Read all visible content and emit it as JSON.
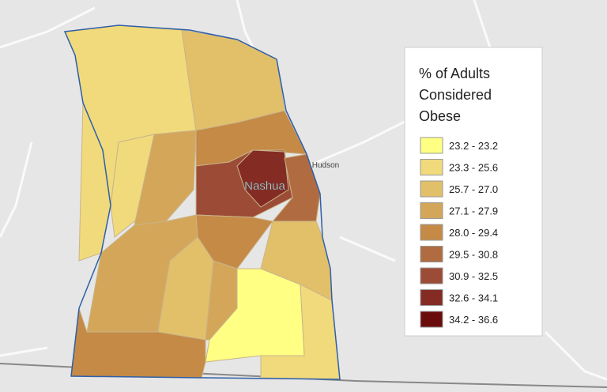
{
  "map": {
    "place_labels": [
      "Nashua",
      "Hudson"
    ]
  },
  "legend": {
    "title_lines": [
      "% of Adults",
      "Considered",
      "Obese"
    ],
    "items": [
      {
        "label": "23.2 - 23.2",
        "color": "#ffff84"
      },
      {
        "label": "23.3 - 25.6",
        "color": "#f0da7c"
      },
      {
        "label": "25.7 - 27.0",
        "color": "#e2c06a"
      },
      {
        "label": "27.1 - 27.9",
        "color": "#d4a65a"
      },
      {
        "label": "28.0 - 29.4",
        "color": "#c48a46"
      },
      {
        "label": "29.5 - 30.8",
        "color": "#b06c40"
      },
      {
        "label": "30.9 - 32.5",
        "color": "#9c4c36"
      },
      {
        "label": "32.6 - 34.1",
        "color": "#842c24"
      },
      {
        "label": "34.2 - 36.6",
        "color": "#6a0c0c"
      }
    ]
  }
}
